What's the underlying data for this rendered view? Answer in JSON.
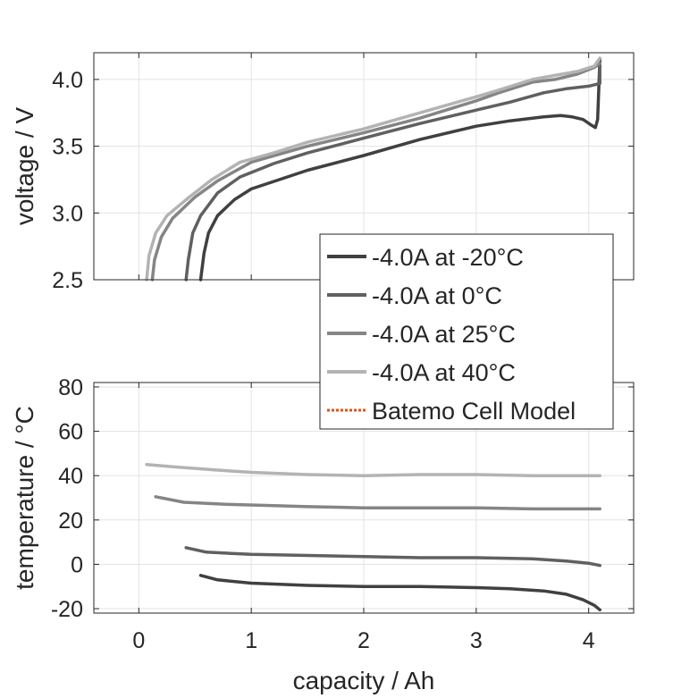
{
  "chart_data": [
    {
      "type": "line",
      "title": "",
      "xlabel": "",
      "ylabel": "voltage / V",
      "xlim": [
        -0.4,
        4.4
      ],
      "ylim": [
        2.5,
        4.2
      ],
      "xticks": [],
      "yticks": [
        "2.5",
        "3.0",
        "3.5",
        "4.0"
      ],
      "ytick_values": [
        2.5,
        3.0,
        3.5,
        4.0
      ],
      "grid": true,
      "series": [
        {
          "name": "-4.0A at -20°C",
          "color": "#404040",
          "x": [
            0.55,
            0.58,
            0.62,
            0.7,
            0.85,
            1.0,
            1.5,
            2.0,
            2.5,
            3.0,
            3.3,
            3.6,
            3.75,
            3.85,
            3.95,
            4.02,
            4.06,
            4.08,
            4.1
          ],
          "y": [
            2.5,
            2.7,
            2.85,
            2.98,
            3.1,
            3.18,
            3.32,
            3.43,
            3.55,
            3.65,
            3.69,
            3.72,
            3.73,
            3.72,
            3.7,
            3.66,
            3.64,
            3.7,
            4.15
          ]
        },
        {
          "name": "-4.0A at 0°C",
          "color": "#606060",
          "x": [
            0.42,
            0.44,
            0.48,
            0.55,
            0.7,
            0.9,
            1.2,
            1.5,
            2.0,
            2.5,
            3.0,
            3.3,
            3.6,
            3.8,
            4.0,
            4.1,
            4.1
          ],
          "y": [
            2.5,
            2.65,
            2.85,
            2.98,
            3.15,
            3.27,
            3.37,
            3.45,
            3.56,
            3.67,
            3.77,
            3.83,
            3.9,
            3.93,
            3.95,
            3.97,
            4.15
          ]
        },
        {
          "name": "-4.0A at 25°C",
          "color": "#858585",
          "x": [
            0.12,
            0.14,
            0.2,
            0.3,
            0.5,
            0.7,
            1.0,
            1.5,
            2.0,
            2.5,
            3.0,
            3.2,
            3.5,
            3.7,
            3.9,
            4.05,
            4.1
          ],
          "y": [
            2.5,
            2.65,
            2.82,
            2.96,
            3.12,
            3.24,
            3.38,
            3.5,
            3.6,
            3.71,
            3.84,
            3.9,
            3.98,
            4.0,
            4.04,
            4.09,
            4.12
          ]
        },
        {
          "name": "-4.0A at 40°C",
          "color": "#b3b3b3",
          "x": [
            0.07,
            0.09,
            0.15,
            0.25,
            0.45,
            0.65,
            0.9,
            1.2,
            1.5,
            2.0,
            2.5,
            3.0,
            3.2,
            3.5,
            3.7,
            3.9,
            4.05,
            4.1
          ],
          "y": [
            2.5,
            2.68,
            2.85,
            2.98,
            3.12,
            3.25,
            3.38,
            3.45,
            3.53,
            3.63,
            3.75,
            3.87,
            3.92,
            4.0,
            4.03,
            4.06,
            4.1,
            4.16
          ]
        }
      ]
    },
    {
      "type": "line",
      "title": "",
      "xlabel": "capacity / Ah",
      "ylabel": "temperature / °C",
      "xlim": [
        -0.4,
        4.4
      ],
      "ylim": [
        -22,
        82
      ],
      "xticks": [
        "0",
        "1",
        "2",
        "3",
        "4"
      ],
      "xtick_values": [
        0,
        1,
        2,
        3,
        4
      ],
      "yticks": [
        "-20",
        "0",
        "20",
        "40",
        "60",
        "80"
      ],
      "ytick_values": [
        -20,
        0,
        20,
        40,
        60,
        80
      ],
      "grid": true,
      "series": [
        {
          "name": "-4.0A at -20°C",
          "color": "#404040",
          "x": [
            0.55,
            0.7,
            1.0,
            1.5,
            2.0,
            2.5,
            3.0,
            3.3,
            3.6,
            3.8,
            3.95,
            4.05,
            4.1
          ],
          "y": [
            -5,
            -7,
            -8.5,
            -9.5,
            -10,
            -10,
            -10.5,
            -11,
            -12,
            -13.5,
            -16,
            -18.5,
            -20.5
          ]
        },
        {
          "name": "-4.0A at 0°C",
          "color": "#606060",
          "x": [
            0.42,
            0.6,
            1.0,
            1.5,
            2.0,
            2.5,
            3.0,
            3.5,
            3.8,
            4.0,
            4.1
          ],
          "y": [
            7.5,
            5.5,
            4.5,
            4,
            3.5,
            3,
            3,
            2.5,
            1.5,
            0.5,
            -0.5
          ]
        },
        {
          "name": "-4.0A at 25°C",
          "color": "#858585",
          "x": [
            0.15,
            0.4,
            0.8,
            1.2,
            1.5,
            2.0,
            2.5,
            3.0,
            3.5,
            4.0,
            4.1
          ],
          "y": [
            30.5,
            28,
            27,
            26.5,
            26,
            25.5,
            25.5,
            25.5,
            25,
            25,
            25
          ]
        },
        {
          "name": "-4.0A at 40°C",
          "color": "#b3b3b3",
          "x": [
            0.07,
            0.3,
            0.7,
            1.0,
            1.5,
            2.0,
            2.5,
            3.0,
            3.5,
            4.0,
            4.1
          ],
          "y": [
            45,
            44,
            42.5,
            41.5,
            40.5,
            40,
            40.5,
            40.5,
            40,
            40,
            40
          ]
        }
      ]
    }
  ],
  "legend": {
    "items": [
      {
        "label": "-4.0A at -20°C",
        "color": "#404040",
        "style": "solid"
      },
      {
        "label": "-4.0A at 0°C",
        "color": "#606060",
        "style": "solid"
      },
      {
        "label": "-4.0A at 25°C",
        "color": "#858585",
        "style": "solid"
      },
      {
        "label": "-4.0A at 40°C",
        "color": "#b3b3b3",
        "style": "solid"
      },
      {
        "label": "Batemo Cell Model",
        "color": "#d95319",
        "style": "dotted"
      }
    ]
  }
}
